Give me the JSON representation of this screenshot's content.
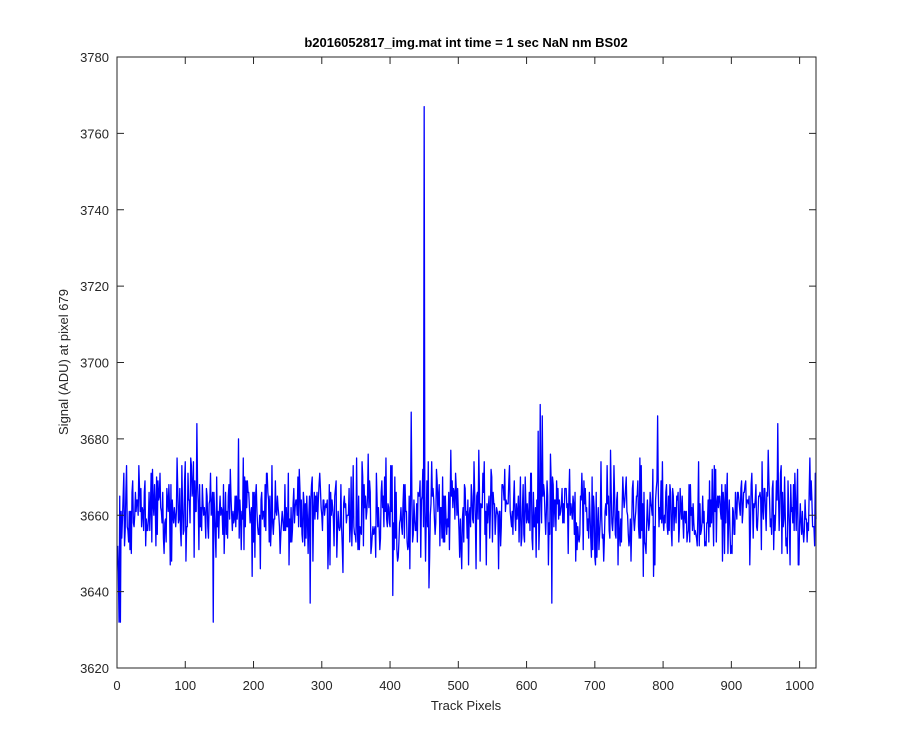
{
  "chart_data": {
    "type": "line",
    "title": "b2016052817_img.mat int time = 1 sec  NaN nm BS02",
    "xlabel": "Track Pixels",
    "ylabel": "Signal (ADU) at pixel 679",
    "xlim": [
      0,
      1024
    ],
    "ylim": [
      3620,
      3780
    ],
    "xticks": [
      0,
      100,
      200,
      300,
      400,
      500,
      600,
      700,
      800,
      900,
      1000
    ],
    "yticks": [
      3620,
      3640,
      3660,
      3680,
      3700,
      3720,
      3740,
      3760,
      3780
    ],
    "grid": false,
    "series": [
      {
        "color": "#0000ff",
        "x_start": 1,
        "x_step": 1,
        "count": 1024,
        "baseline": 3661,
        "noise_amplitude": 8,
        "notable_points": [
          [
            3,
            3632
          ],
          [
            5,
            3632
          ],
          [
            14,
            3673
          ],
          [
            117,
            3684
          ],
          [
            141,
            3632
          ],
          [
            178,
            3680
          ],
          [
            283,
            3637
          ],
          [
            404,
            3639
          ],
          [
            431,
            3687
          ],
          [
            450,
            3767
          ],
          [
            452,
            3648
          ],
          [
            457,
            3641
          ],
          [
            617,
            3682
          ],
          [
            620,
            3689
          ],
          [
            623,
            3686
          ],
          [
            625,
            3668
          ],
          [
            637,
            3637
          ],
          [
            792,
            3686
          ],
          [
            968,
            3684
          ]
        ]
      }
    ]
  }
}
